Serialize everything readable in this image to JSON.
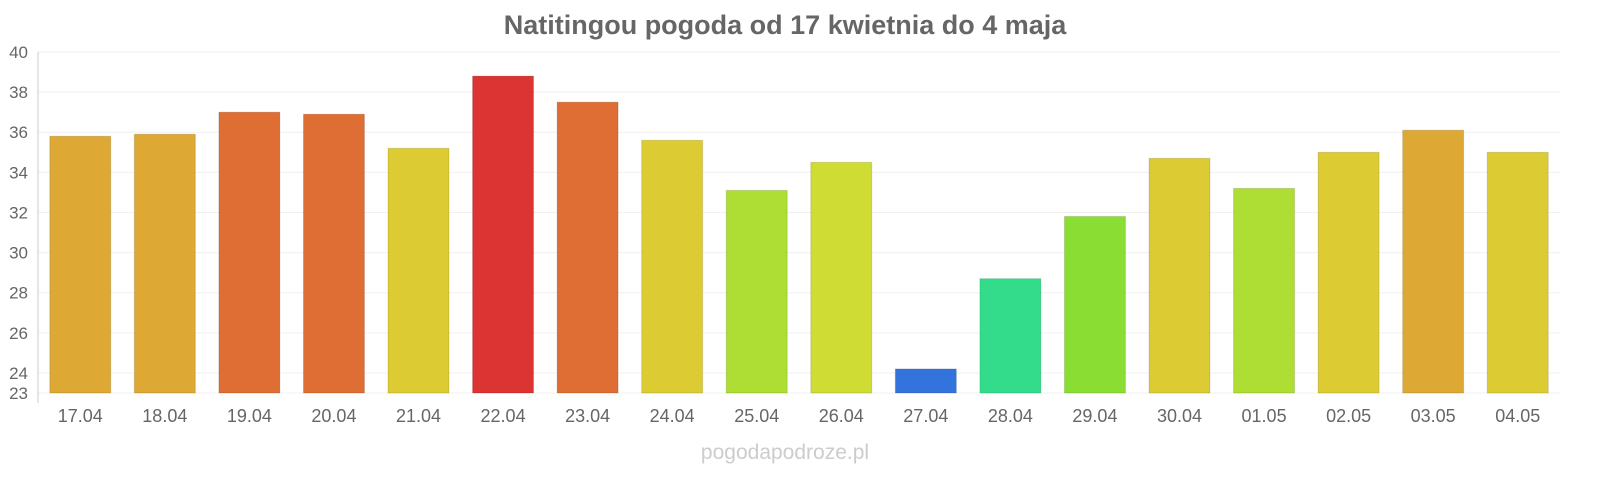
{
  "footer": "pogodapodroze.pl",
  "chart_data": {
    "type": "bar",
    "title": "Natitingou pogoda od 17 kwietnia do 4 maja",
    "xlabel": "",
    "ylabel": "",
    "ylim": [
      23,
      40
    ],
    "yticks": [
      23,
      24,
      26,
      28,
      30,
      32,
      34,
      36,
      38,
      40
    ],
    "grid": true,
    "categories": [
      "17.04",
      "18.04",
      "19.04",
      "20.04",
      "21.04",
      "22.04",
      "23.04",
      "24.04",
      "25.04",
      "26.04",
      "27.04",
      "28.04",
      "29.04",
      "30.04",
      "01.05",
      "02.05",
      "03.05",
      "04.05"
    ],
    "values": [
      35.8,
      35.9,
      37.0,
      36.9,
      35.2,
      38.8,
      37.5,
      35.6,
      33.1,
      34.5,
      24.2,
      28.7,
      31.8,
      34.7,
      33.2,
      35.0,
      36.1,
      35.0
    ],
    "colors": [
      "#dea834",
      "#dea834",
      "#de6e33",
      "#de6e33",
      "#dccb33",
      "#dc3333",
      "#de6e33",
      "#dccb33",
      "#aedd33",
      "#cfdc33",
      "#3374dc",
      "#33dc8a",
      "#8ade33",
      "#dccb33",
      "#aedd33",
      "#dccb33",
      "#dea834",
      "#dccb33"
    ]
  }
}
